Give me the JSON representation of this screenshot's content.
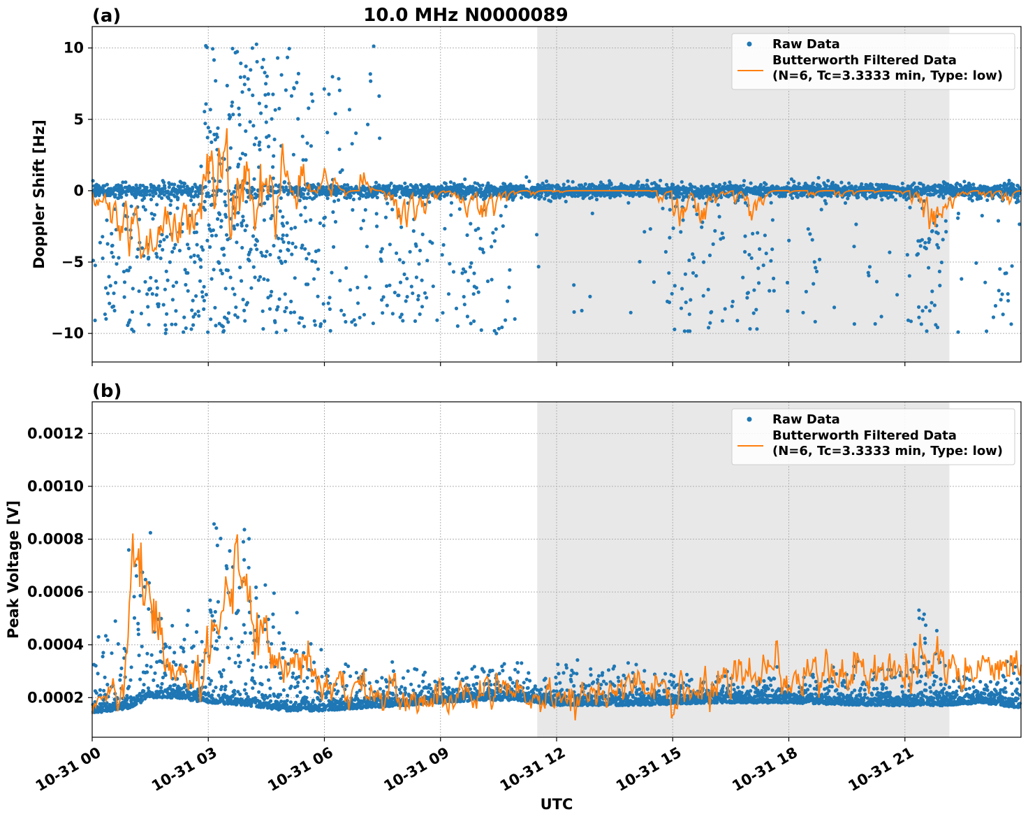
{
  "chart_data": [
    {
      "id": "a",
      "type": "scatter",
      "panel_label": "(a)",
      "title": "10.0 MHz N0000089",
      "ylabel": "Doppler Shift [Hz]",
      "xlabel": "",
      "xlim": [
        0,
        24
      ],
      "ylim": [
        -12,
        11.5
      ],
      "yticks": [
        10,
        5,
        0,
        -5,
        -10
      ],
      "ytick_labels": [
        "10",
        "5",
        "0",
        "−5",
        "−10"
      ],
      "grid": true,
      "legend_placement": "top-right",
      "shaded_region": {
        "x_start": 11.5,
        "x_end": 22.15,
        "color": "#e8e8e8"
      },
      "series": [
        {
          "name": "Raw Data",
          "kind": "scatter",
          "color": "#1f77b4"
        },
        {
          "name": "Butterworth Filtered Data",
          "name_line2": "(N=6, Tc=3.3333 min, Type: low)",
          "kind": "line",
          "color": "#ff7f0e"
        }
      ],
      "profile": {
        "activity_x": [
          0,
          0.5,
          1.0,
          1.5,
          2.0,
          2.5,
          2.9,
          3.2,
          3.6,
          4.0,
          4.5,
          5.0,
          5.5,
          6.0,
          6.5,
          7.0,
          7.5,
          8.0,
          8.5,
          9.0,
          9.5,
          10.0,
          10.5,
          11.0,
          12.0,
          14.5,
          15.0,
          15.5,
          16.0,
          16.5,
          17.0,
          17.5,
          18.0,
          19.0,
          20.0,
          21.0,
          21.5,
          22.0,
          22.5,
          23.0,
          23.5,
          24.0
        ],
        "activity_val": [
          0.3,
          0.6,
          0.9,
          0.9,
          0.7,
          0.7,
          1.0,
          1.0,
          1.0,
          1.0,
          0.9,
          0.7,
          0.6,
          0.35,
          0.3,
          0.4,
          0.3,
          0.6,
          0.6,
          0.2,
          0.25,
          0.5,
          0.4,
          0.1,
          0.05,
          0.05,
          0.5,
          0.5,
          0.4,
          0.2,
          0.5,
          0.2,
          0.1,
          0.15,
          0.1,
          0.15,
          0.6,
          0.5,
          0.1,
          0.1,
          0.3,
          0.1
        ]
      }
    },
    {
      "id": "b",
      "type": "scatter",
      "panel_label": "(b)",
      "title": "",
      "ylabel": "Peak Voltage [V]",
      "xlabel": "UTC",
      "xlim": [
        0,
        24
      ],
      "ylim": [
        5e-05,
        0.00132
      ],
      "yticks": [
        0.0012,
        0.001,
        0.0008,
        0.0006,
        0.0004,
        0.0002
      ],
      "ytick_labels": [
        "0.0012",
        "0.0010",
        "0.0008",
        "0.0006",
        "0.0004",
        "0.0002"
      ],
      "xticks": [
        0,
        3,
        6,
        9,
        12,
        15,
        18,
        21
      ],
      "xtick_labels": [
        "10-31 00",
        "10-31 03",
        "10-31 06",
        "10-31 09",
        "10-31 12",
        "10-31 15",
        "10-31 18",
        "10-31 21"
      ],
      "grid": true,
      "legend_placement": "top-right",
      "shaded_region": {
        "x_start": 11.5,
        "x_end": 22.15,
        "color": "#e8e8e8"
      },
      "series": [
        {
          "name": "Raw Data",
          "kind": "scatter",
          "color": "#1f77b4"
        },
        {
          "name": "Butterworth Filtered Data",
          "name_line2": "(N=6, Tc=3.3333 min, Type: low)",
          "kind": "line",
          "color": "#ff7f0e"
        }
      ],
      "profile": {
        "baseline_x": [
          0,
          1.0,
          1.5,
          2.0,
          3.0,
          4.0,
          5.0,
          6.0,
          7.0,
          8.0,
          9.0,
          10.0,
          11.0,
          12.0,
          14.0,
          16.0,
          18.0,
          20.0,
          22.0,
          23.0,
          24.0
        ],
        "baseline_val": [
          0.00014,
          0.00016,
          0.0002,
          0.0002,
          0.00018,
          0.00017,
          0.00015,
          0.00015,
          0.00016,
          0.00017,
          0.00018,
          0.00019,
          0.00019,
          0.00017,
          0.00017,
          0.00018,
          0.00018,
          0.00017,
          0.00017,
          0.00018,
          0.00016
        ],
        "filtered_x": [
          0,
          0.8,
          1.0,
          1.3,
          1.8,
          2.3,
          2.8,
          3.2,
          3.8,
          4.3,
          5.0,
          5.5,
          6.0,
          7.0,
          8.0,
          9.0,
          10.0,
          11.0,
          12.0,
          13.0,
          14.0,
          15.0,
          16.0,
          17.0,
          18.0,
          19.0,
          20.0,
          21.0,
          22.0,
          23.0,
          24.0
        ],
        "filtered_val": [
          0.00016,
          0.00022,
          0.0007,
          0.00065,
          0.00045,
          0.00025,
          0.0003,
          0.0005,
          0.0006,
          0.00045,
          0.00035,
          0.0003,
          0.00025,
          0.00022,
          0.0002,
          0.00021,
          0.00023,
          0.00022,
          0.0002,
          0.00022,
          0.00024,
          0.00024,
          0.00025,
          0.00028,
          0.00028,
          0.0003,
          0.0003,
          0.00032,
          0.00032,
          0.0003,
          0.0003
        ],
        "spread_x": [
          0,
          0.8,
          1.0,
          1.5,
          2.0,
          2.8,
          3.2,
          4.0,
          5.0,
          5.5,
          6.0,
          7.0,
          8.0,
          9.0,
          10.0,
          10.5,
          11.5,
          14.0,
          17.0,
          21.0,
          21.6,
          22.0,
          23.0,
          24.0
        ],
        "spread_val": [
          0.00035,
          0.0004,
          0.0008,
          0.00075,
          0.0004,
          0.00045,
          0.00075,
          0.0007,
          0.0005,
          0.0004,
          0.0003,
          0.00028,
          0.0003,
          0.00025,
          0.0003,
          0.00035,
          0.00028,
          0.00028,
          0.00026,
          0.0003,
          0.00055,
          0.0003,
          0.00025,
          0.0003
        ]
      }
    }
  ]
}
